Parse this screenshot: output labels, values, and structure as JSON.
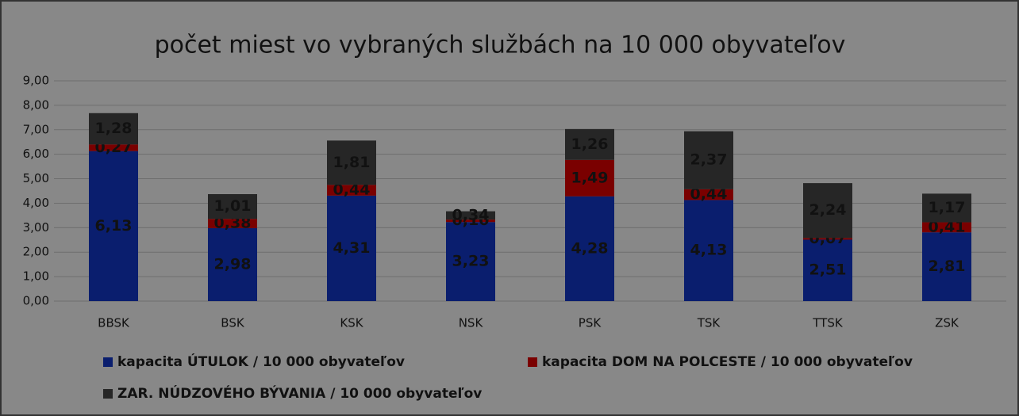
{
  "chart_data": {
    "type": "stacked_bar",
    "title": "počet miest vo vybraných službách na 10 000 obyvateľov",
    "categories": [
      "BBSK",
      "BSK",
      "KSK",
      "NSK",
      "PSK",
      "TSK",
      "TTSK",
      "ZSK"
    ],
    "series": [
      {
        "name": "kapacita ÚTULOK / 10 000 obyvateľov",
        "color": "#0a1e6e",
        "values": [
          6.13,
          2.98,
          4.31,
          3.23,
          4.28,
          4.13,
          2.51,
          2.81
        ],
        "value_labels": [
          "6,13",
          "2,98",
          "4,31",
          "3,23",
          "4,28",
          "4,13",
          "2,51",
          "2,81"
        ]
      },
      {
        "name": "kapacita DOM NA POLCESTE  / 10 000 obyvateľov",
        "color": "#7a0000",
        "values": [
          0.27,
          0.38,
          0.44,
          0.1,
          1.49,
          0.44,
          0.07,
          0.41
        ],
        "value_labels": [
          "0,27",
          "0,38",
          "0,44",
          "0,10",
          "1,49",
          "0,44",
          "0,07",
          "0,41"
        ]
      },
      {
        "name": "ZAR. NÚDZOVÉHO BÝVANIA  / 10 000 obyvateľov",
        "color": "#262626",
        "values": [
          1.28,
          1.01,
          1.81,
          0.34,
          1.26,
          2.37,
          2.24,
          1.17
        ],
        "value_labels": [
          "1,28",
          "1,01",
          "1,81",
          "0,34",
          "1,26",
          "2,37",
          "2,24",
          "1,17"
        ]
      }
    ],
    "ylim": [
      0,
      9
    ],
    "yticks": [
      {
        "value": 0,
        "label": "0,00"
      },
      {
        "value": 1,
        "label": "1,00"
      },
      {
        "value": 2,
        "label": "2,00"
      },
      {
        "value": 3,
        "label": "3,00"
      },
      {
        "value": 4,
        "label": "4,00"
      },
      {
        "value": 5,
        "label": "5,00"
      },
      {
        "value": 6,
        "label": "6,00"
      },
      {
        "value": 7,
        "label": "7,00"
      },
      {
        "value": 8,
        "label": "8,00"
      },
      {
        "value": 9,
        "label": "9,00"
      }
    ],
    "grid": true
  }
}
